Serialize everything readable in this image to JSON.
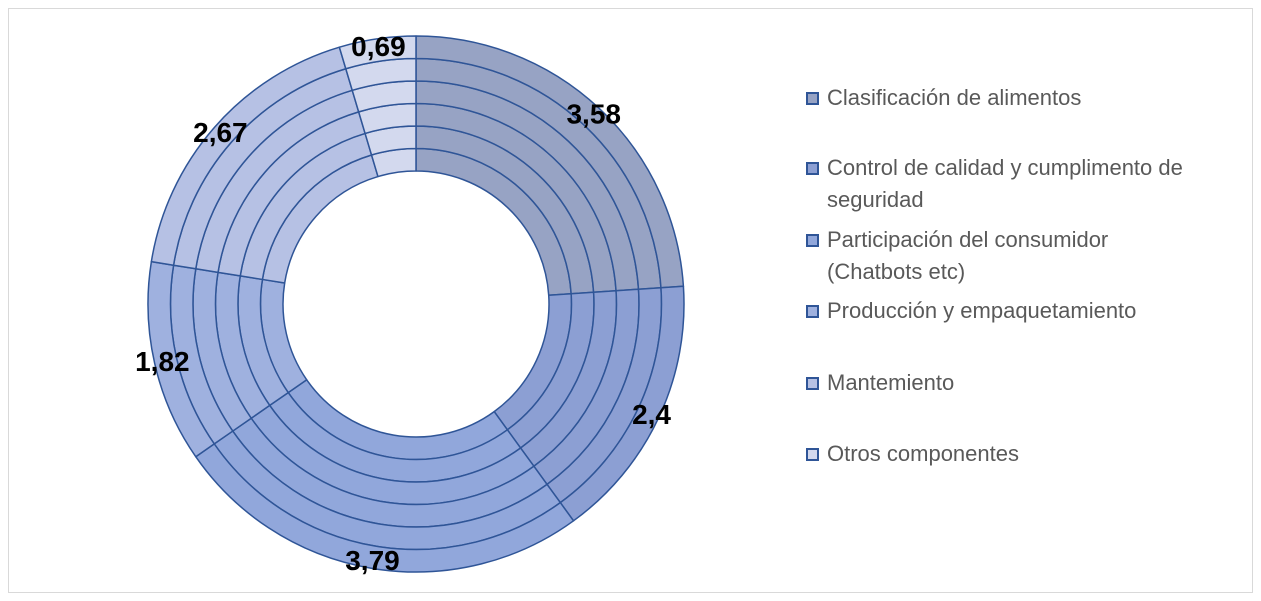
{
  "chart_data": {
    "type": "donut",
    "rings": 6,
    "categories": [
      "Clasificación de alimentos",
      "Control de calidad y cumplimento de seguridad",
      "Participación del consumidor (Chatbots etc)",
      "Producción y empaquetamiento",
      "Mantemiento",
      "Otros componentes"
    ],
    "values": [
      3.58,
      2.4,
      3.79,
      1.82,
      2.67,
      0.69
    ],
    "data_labels": [
      "3,58",
      "2,4",
      "3,79",
      "1,82",
      "2,67",
      "0,69"
    ],
    "colors": [
      "#97a3c4",
      "#8c9fd3",
      "#91a7db",
      "#9fb1df",
      "#b6c1e4",
      "#d3d9ee"
    ],
    "stroke_color": "#2f5597",
    "legend_position": "right",
    "title": ""
  }
}
